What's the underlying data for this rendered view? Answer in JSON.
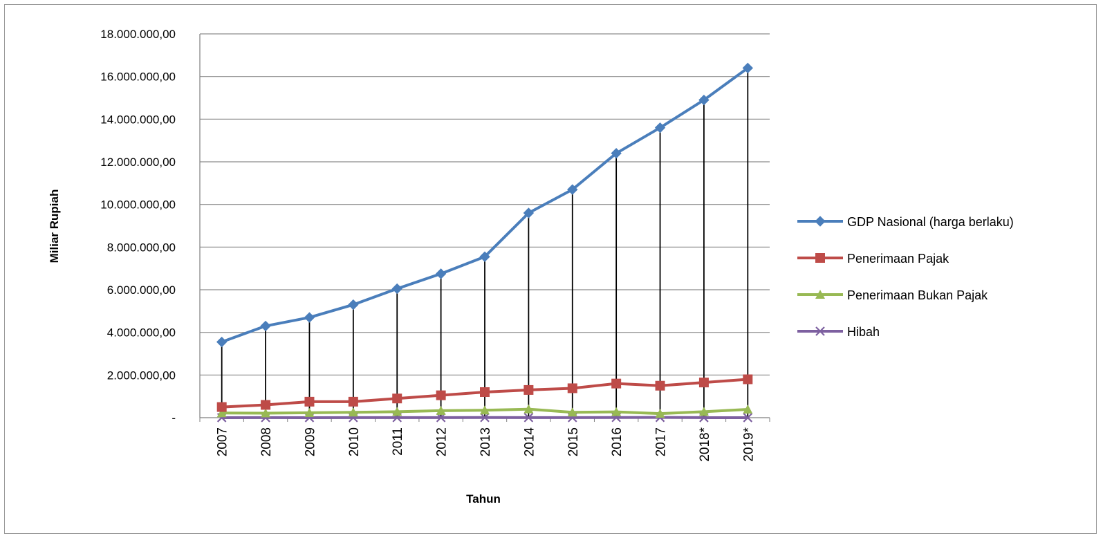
{
  "chart_data": {
    "type": "line",
    "title": "",
    "xlabel": "Tahun",
    "ylabel": "Miliar Rupiah",
    "categories": [
      "2007",
      "2008",
      "2009",
      "2010",
      "2011",
      "2012",
      "2013",
      "2014",
      "2015",
      "2016",
      "2017",
      "2018*",
      "2019*"
    ],
    "ylim": [
      0,
      18000000
    ],
    "yticks": [
      0,
      2000000,
      4000000,
      6000000,
      8000000,
      10000000,
      12000000,
      14000000,
      16000000,
      18000000
    ],
    "ytick_labels": [
      "-",
      "2.000.000,00",
      "4.000.000,00",
      "6.000.000,00",
      "8.000.000,00",
      "10.000.000,00",
      "12.000.000,00",
      "14.000.000,00",
      "16.000.000,00",
      "18.000.000,00"
    ],
    "grid": true,
    "drop_lines": true,
    "legend_position": "right",
    "series": [
      {
        "name": "GDP Nasional (harga berlaku)",
        "color": "#4A7EBB",
        "marker": "diamond",
        "values": [
          3550000,
          4300000,
          4700000,
          5300000,
          6050000,
          6750000,
          7550000,
          9600000,
          10700000,
          12400000,
          13600000,
          14900000,
          16400000
        ]
      },
      {
        "name": "Penerimaan Pajak",
        "color": "#BE4B48",
        "marker": "square",
        "values": [
          500000,
          600000,
          750000,
          750000,
          900000,
          1050000,
          1200000,
          1300000,
          1380000,
          1600000,
          1500000,
          1650000,
          1800000
        ]
      },
      {
        "name": "Penerimaan Bukan Pajak",
        "color": "#98B954",
        "marker": "triangle",
        "values": [
          220000,
          210000,
          230000,
          250000,
          280000,
          330000,
          350000,
          400000,
          250000,
          270000,
          190000,
          280000,
          390000
        ]
      },
      {
        "name": "Hibah",
        "color": "#7D60A0",
        "marker": "x",
        "values": [
          2000,
          3000,
          2000,
          3000,
          5000,
          5000,
          7000,
          5000,
          3000,
          9000,
          11000,
          2000,
          2000
        ]
      }
    ]
  }
}
